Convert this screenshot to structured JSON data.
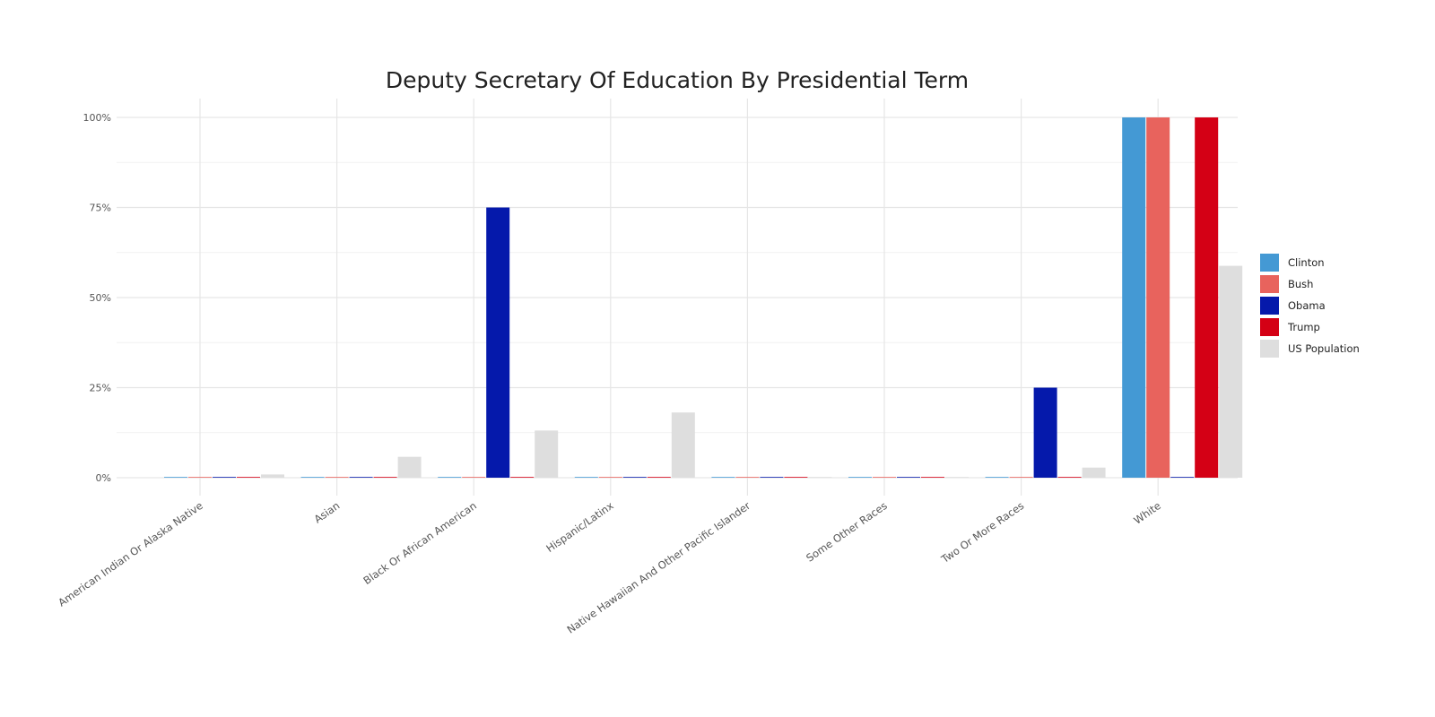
{
  "chart_data": {
    "type": "bar",
    "title": "Deputy Secretary Of Education By Presidential Term",
    "xlabel": "",
    "ylabel": "",
    "ylim": [
      0,
      1
    ],
    "y_tick_values": [
      0,
      0.25,
      0.5,
      0.75,
      1
    ],
    "y_tick_labels": [
      "0%",
      "25%",
      "50%",
      "75%",
      "100%"
    ],
    "categories": [
      "American Indian Or Alaska Native",
      "Asian",
      "Black Or African American",
      "Hispanic/Latinx",
      "Native Hawaiian And Other Pacific Islander",
      "Some Other Races",
      "Two Or More Races",
      "White"
    ],
    "series": [
      {
        "name": "Clinton",
        "color": "#4499d4",
        "values": [
          0,
          0,
          0,
          0,
          0,
          0,
          0,
          1.0
        ]
      },
      {
        "name": "Bush",
        "color": "#e8635d",
        "values": [
          0,
          0,
          0,
          0,
          0,
          0,
          0,
          1.0
        ]
      },
      {
        "name": "Obama",
        "color": "#0519ab",
        "values": [
          0,
          0,
          0.75,
          0,
          0,
          0,
          0.25,
          0
        ]
      },
      {
        "name": "Trump",
        "color": "#d40015",
        "values": [
          0,
          0,
          0,
          0,
          0,
          0,
          0,
          1.0
        ]
      },
      {
        "name": "US Population",
        "color": "#dedede",
        "values": [
          0.009,
          0.058,
          0.131,
          0.181,
          0.002,
          0.002,
          0.028,
          0.588
        ]
      }
    ],
    "grid": true,
    "legend_position": "right"
  }
}
